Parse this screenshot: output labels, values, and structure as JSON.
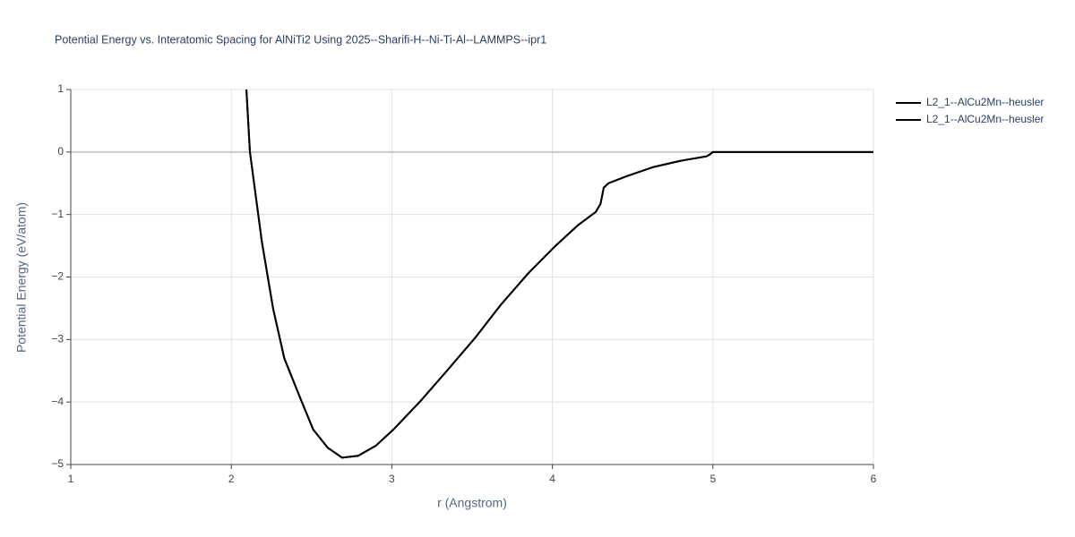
{
  "chart_data": {
    "type": "line",
    "title": "Potential Energy vs. Interatomic Spacing for AlNiTi2 Using 2025--Sharifi-H--Ni-Ti-Al--LAMMPS--ipr1",
    "x_label": "r (Angstrom)",
    "y_label": "Potential Energy (eV/atom)",
    "xlim": [
      1,
      6
    ],
    "ylim": [
      -5,
      1
    ],
    "xticks": [
      1,
      2,
      3,
      4,
      5,
      6
    ],
    "yticks": [
      {
        "value": -5,
        "label": "−5"
      },
      {
        "value": -4,
        "label": "−4"
      },
      {
        "value": -3,
        "label": "−3"
      },
      {
        "value": -2,
        "label": "−2"
      },
      {
        "value": -1,
        "label": "−1"
      },
      0,
      1
    ],
    "grid": true,
    "series": [
      {
        "name": "L2_1--AlCu2Mn--heusler",
        "color": "#000000",
        "x": [
          2.094,
          2.116,
          2.19,
          2.26,
          2.33,
          2.43,
          2.51,
          2.6,
          2.69,
          2.79,
          2.9,
          3.01,
          3.18,
          3.35,
          3.52,
          3.68,
          3.85,
          4.02,
          4.16,
          4.27,
          4.3,
          4.32,
          4.35,
          4.46,
          4.63,
          4.8,
          4.96,
          4.98,
          5.0,
          6.0
        ],
        "values": [
          1,
          0,
          -1.43,
          -2.5,
          -3.3,
          -3.94,
          -4.44,
          -4.73,
          -4.89,
          -4.86,
          -4.7,
          -4.44,
          -3.98,
          -3.48,
          -2.97,
          -2.44,
          -1.94,
          -1.5,
          -1.17,
          -0.96,
          -0.83,
          -0.57,
          -0.5,
          -0.39,
          -0.24,
          -0.14,
          -0.07,
          -0.04,
          0,
          0
        ]
      },
      {
        "name": "L2_1--AlCu2Mn--heusler",
        "color": "#000000",
        "x": [
          2.094,
          2.116,
          2.19,
          2.26,
          2.33,
          2.43,
          2.51,
          2.6,
          2.69,
          2.79,
          2.9,
          3.01,
          3.18,
          3.35,
          3.52,
          3.68,
          3.85,
          4.02,
          4.16,
          4.27,
          4.3,
          4.32,
          4.35,
          4.46,
          4.63,
          4.8,
          4.96,
          4.98,
          5.0,
          6.0
        ],
        "values": [
          1,
          0,
          -1.43,
          -2.5,
          -3.3,
          -3.94,
          -4.44,
          -4.73,
          -4.89,
          -4.86,
          -4.7,
          -4.44,
          -3.98,
          -3.48,
          -2.97,
          -2.44,
          -1.94,
          -1.5,
          -1.17,
          -0.96,
          -0.83,
          -0.57,
          -0.5,
          -0.39,
          -0.24,
          -0.14,
          -0.07,
          -0.04,
          0,
          0
        ]
      }
    ]
  }
}
